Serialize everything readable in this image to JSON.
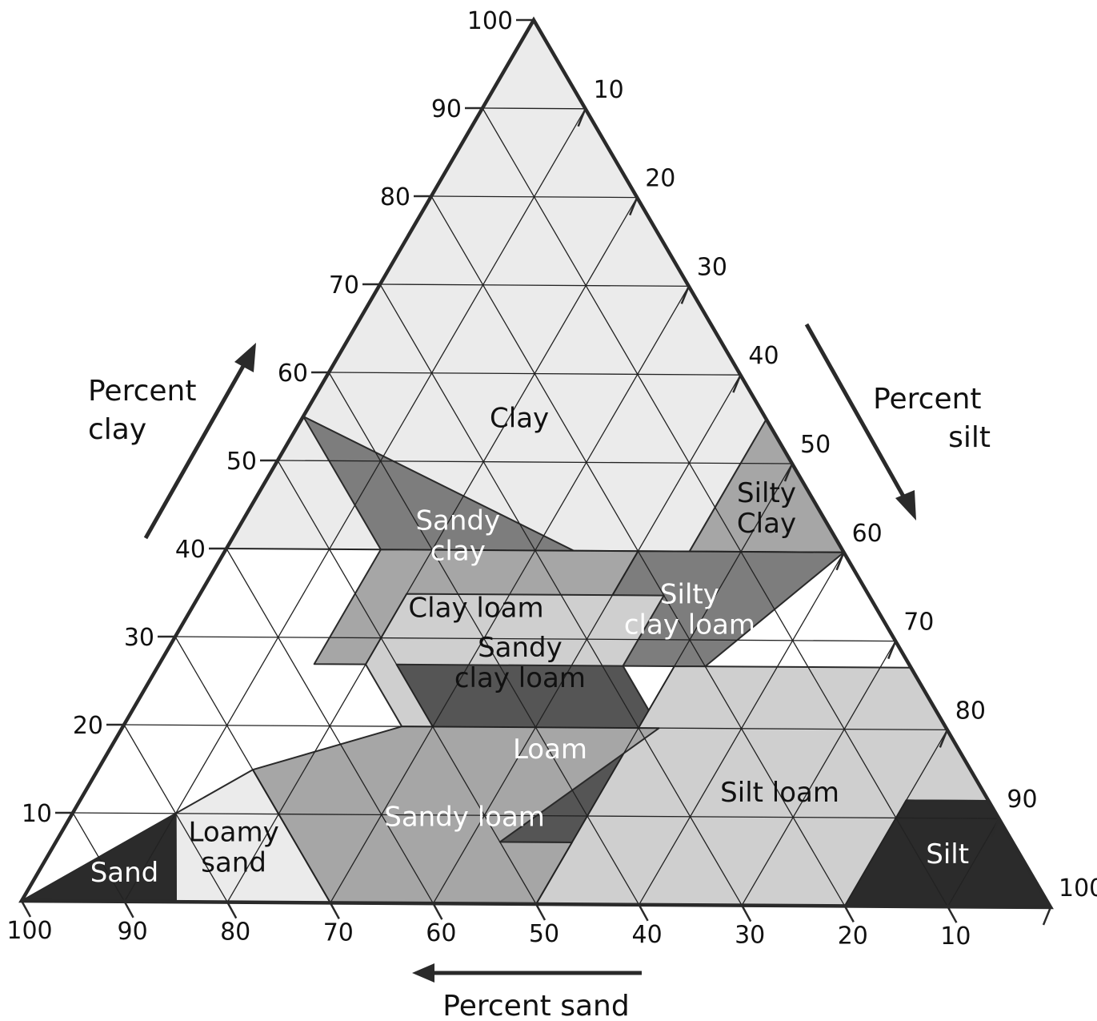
{
  "axes": {
    "clay": {
      "title_lines": [
        "Percent",
        "clay"
      ],
      "ticks": [
        10,
        20,
        30,
        40,
        50,
        60,
        70,
        80,
        90,
        100
      ]
    },
    "silt": {
      "title_lines": [
        "Percent",
        "silt"
      ],
      "ticks": [
        10,
        20,
        30,
        40,
        50,
        60,
        70,
        80,
        90,
        100
      ]
    },
    "sand": {
      "title": "Percent sand",
      "ticks": [
        100,
        90,
        80,
        70,
        60,
        50,
        40,
        30,
        20,
        10
      ]
    }
  },
  "colors": {
    "lightest": "#ebebeb",
    "light": "#cfcfcf",
    "medium": "#a6a6a6",
    "dark": "#7d7d7d",
    "darker": "#555555",
    "darkest": "#2b2b2b"
  },
  "regions": [
    {
      "name": "clay",
      "lines": [
        "Clay"
      ],
      "tone": "lightest",
      "text_color": "#111111",
      "polygon": [
        [
          40,
          0
        ],
        [
          100,
          0
        ],
        [
          55,
          45
        ],
        [
          40,
          45
        ],
        [
          40,
          15
        ]
      ]
    },
    {
      "name": "silty-clay",
      "lines": [
        "Silty",
        "Clay"
      ],
      "tone": "medium",
      "text_color": "#111111",
      "polygon": [
        [
          40,
          60
        ],
        [
          40,
          45
        ],
        [
          55,
          45
        ]
      ]
    },
    {
      "name": "sandy-clay",
      "lines": [
        "Sandy",
        "clay"
      ],
      "tone": "dark",
      "text_color": "#ffffff",
      "polygon": [
        [
          35,
          45
        ],
        [
          35,
          20
        ],
        [
          55,
          0
        ]
      ]
    },
    {
      "name": "silty-clay-loam",
      "lines": [
        "Silty",
        "clay loam"
      ],
      "tone": "dark",
      "text_color": "#ffffff",
      "polygon": [
        [
          40,
          60
        ],
        [
          40,
          40
        ],
        [
          27,
          40
        ],
        [
          27,
          53
        ]
      ]
    },
    {
      "name": "clay-loam",
      "lines": [
        "Clay loam"
      ],
      "tone": "medium",
      "text_color": "#111111",
      "polygon": [
        [
          40,
          40
        ],
        [
          40,
          15
        ],
        [
          27,
          15
        ],
        [
          27,
          40
        ]
      ]
    },
    {
      "name": "sandy-clay-loam",
      "lines": [
        "Sandy",
        "clay loam"
      ],
      "tone": "light",
      "text_color": "#111111",
      "polygon": [
        [
          35,
          20
        ],
        [
          27,
          20
        ],
        [
          20,
          27
        ],
        [
          20,
          52
        ],
        [
          27,
          45
        ],
        [
          35,
          45
        ]
      ]
    },
    {
      "name": "loam",
      "lines": [
        "Loam"
      ],
      "tone": "darker",
      "text_color": "#ffffff",
      "polygon": [
        [
          27,
          45
        ],
        [
          27,
          23
        ],
        [
          7,
          43
        ],
        [
          7,
          50
        ],
        [
          20,
          52
        ]
      ]
    },
    {
      "name": "silt-loam",
      "lines": [
        "Silt loam"
      ],
      "tone": "light",
      "text_color": "#111111",
      "polygon": [
        [
          27,
          73
        ],
        [
          27,
          50
        ],
        [
          12,
          50
        ],
        [
          0,
          50
        ],
        [
          0,
          80
        ],
        [
          12,
          80
        ],
        [
          12,
          88
        ]
      ]
    },
    {
      "name": "silt",
      "lines": [
        "Silt"
      ],
      "tone": "darkest",
      "text_color": "#ffffff",
      "polygon": [
        [
          12,
          88
        ],
        [
          12,
          80
        ],
        [
          0,
          80
        ],
        [
          0,
          100
        ]
      ]
    },
    {
      "name": "sandy-loam",
      "lines": [
        "Sandy loam"
      ],
      "tone": "medium",
      "text_color": "#ffffff",
      "polygon": [
        [
          20,
          52
        ],
        [
          20,
          27
        ],
        [
          15,
          15
        ],
        [
          0,
          30
        ],
        [
          0,
          50
        ],
        [
          7,
          50
        ],
        [
          7,
          43
        ]
      ]
    },
    {
      "name": "loamy-sand",
      "lines": [
        "Loamy",
        "sand"
      ],
      "tone": "lightest",
      "text_color": "#111111",
      "polygon": [
        [
          15,
          15
        ],
        [
          10,
          10
        ],
        [
          0,
          15
        ],
        [
          0,
          30
        ]
      ]
    },
    {
      "name": "sand",
      "lines": [
        "Sand"
      ],
      "tone": "darkest",
      "text_color": "#ffffff",
      "polygon": [
        [
          10,
          10
        ],
        [
          0,
          0
        ],
        [
          0,
          15
        ]
      ]
    }
  ]
}
